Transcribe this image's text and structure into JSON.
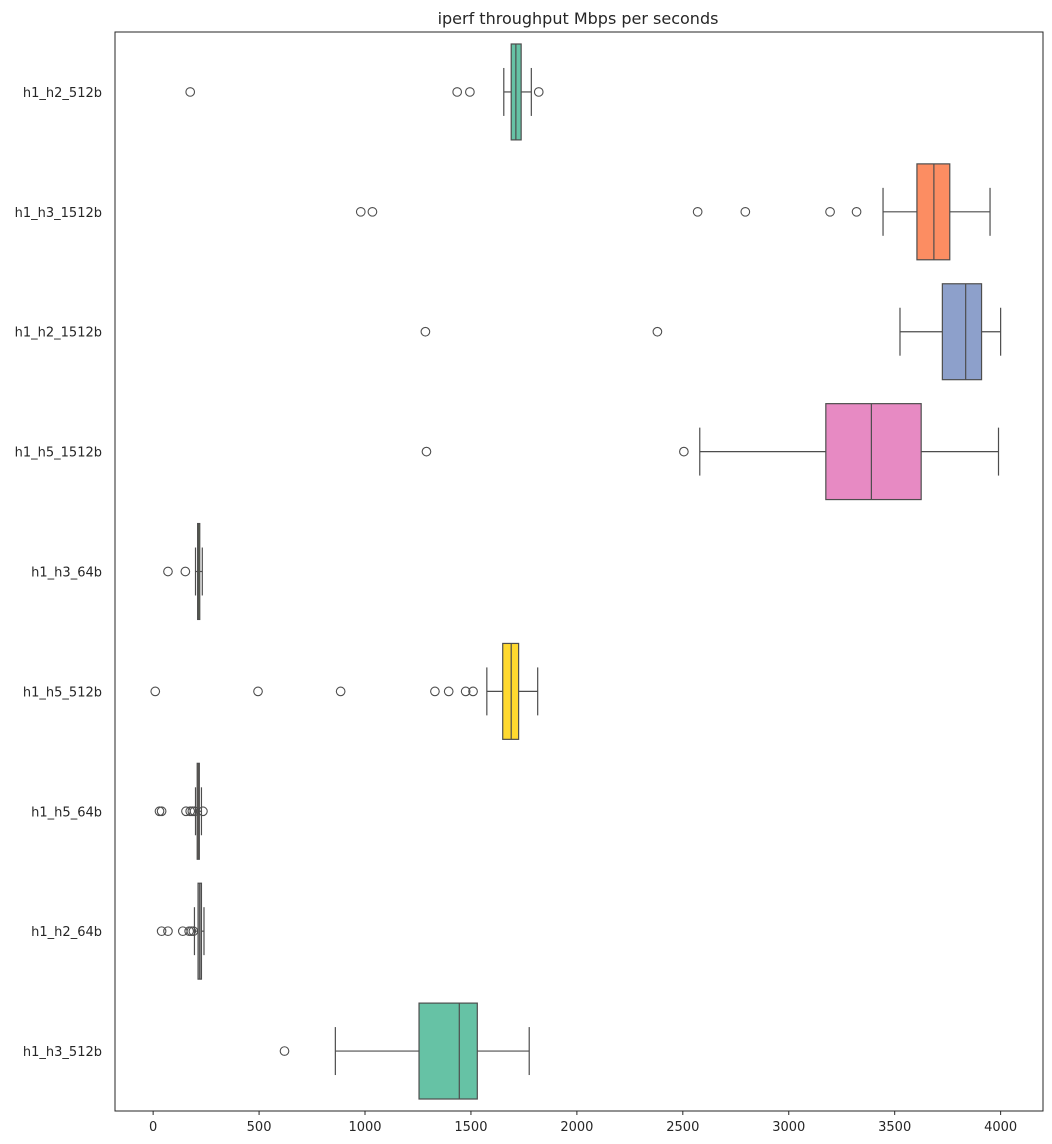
{
  "chart_data": {
    "type": "box",
    "orientation": "horizontal",
    "title": "iperf throughput Mbps per seconds",
    "xlabel": "",
    "ylabel": "",
    "xlim": [
      -180,
      4200
    ],
    "xticks": [
      0,
      500,
      1000,
      1500,
      2000,
      2500,
      3000,
      3500,
      4000
    ],
    "grid": false,
    "legend": "none",
    "categories": [
      "h1_h2_512b",
      "h1_h3_1512b",
      "h1_h2_1512b",
      "h1_h5_1512b",
      "h1_h3_64b",
      "h1_h5_512b",
      "h1_h5_64b",
      "h1_h2_64b",
      "h1_h3_512b"
    ],
    "series": [
      {
        "category": "h1_h2_512b",
        "color": "#66c2a5",
        "whisker_low": 1655,
        "q1": 1690,
        "median": 1712,
        "q3": 1737,
        "whisker_high": 1785,
        "outliers": [
          175,
          1435,
          1495,
          1820
        ]
      },
      {
        "category": "h1_h3_1512b",
        "color": "#fc8d62",
        "whisker_low": 3445,
        "q1": 3605,
        "median": 3685,
        "q3": 3760,
        "whisker_high": 3950,
        "outliers": [
          980,
          1035,
          2570,
          2795,
          3195,
          3320
        ]
      },
      {
        "category": "h1_h2_1512b",
        "color": "#8da0cb",
        "whisker_low": 3525,
        "q1": 3725,
        "median": 3835,
        "q3": 3910,
        "whisker_high": 4000,
        "outliers": [
          1285,
          2380
        ]
      },
      {
        "category": "h1_h5_1512b",
        "color": "#e78ac3",
        "whisker_low": 2580,
        "q1": 3175,
        "median": 3390,
        "q3": 3625,
        "whisker_high": 3990,
        "outliers": [
          1290,
          2505
        ]
      },
      {
        "category": "h1_h3_64b",
        "color": "#a6d854",
        "whisker_low": 200,
        "q1": 210,
        "median": 215,
        "q3": 220,
        "whisker_high": 232,
        "outliers": [
          70,
          152
        ]
      },
      {
        "category": "h1_h5_512b",
        "color": "#ffd92f",
        "whisker_low": 1575,
        "q1": 1650,
        "median": 1690,
        "q3": 1725,
        "whisker_high": 1815,
        "outliers": [
          10,
          495,
          885,
          1330,
          1395,
          1475,
          1510
        ]
      },
      {
        "category": "h1_h5_64b",
        "color": "#e5c494",
        "whisker_low": 200,
        "q1": 208,
        "median": 213,
        "q3": 218,
        "whisker_high": 228,
        "outliers": [
          30,
          40,
          155,
          175,
          185,
          195,
          235
        ]
      },
      {
        "category": "h1_h2_64b",
        "color": "#b3b3b3",
        "whisker_low": 195,
        "q1": 212,
        "median": 220,
        "q3": 228,
        "whisker_high": 240,
        "outliers": [
          40,
          70,
          140,
          170,
          180,
          190
        ]
      },
      {
        "category": "h1_h3_512b",
        "color": "#66c2a5",
        "whisker_low": 860,
        "q1": 1255,
        "median": 1445,
        "q3": 1530,
        "whisker_high": 1775,
        "outliers": [
          620
        ]
      }
    ]
  }
}
